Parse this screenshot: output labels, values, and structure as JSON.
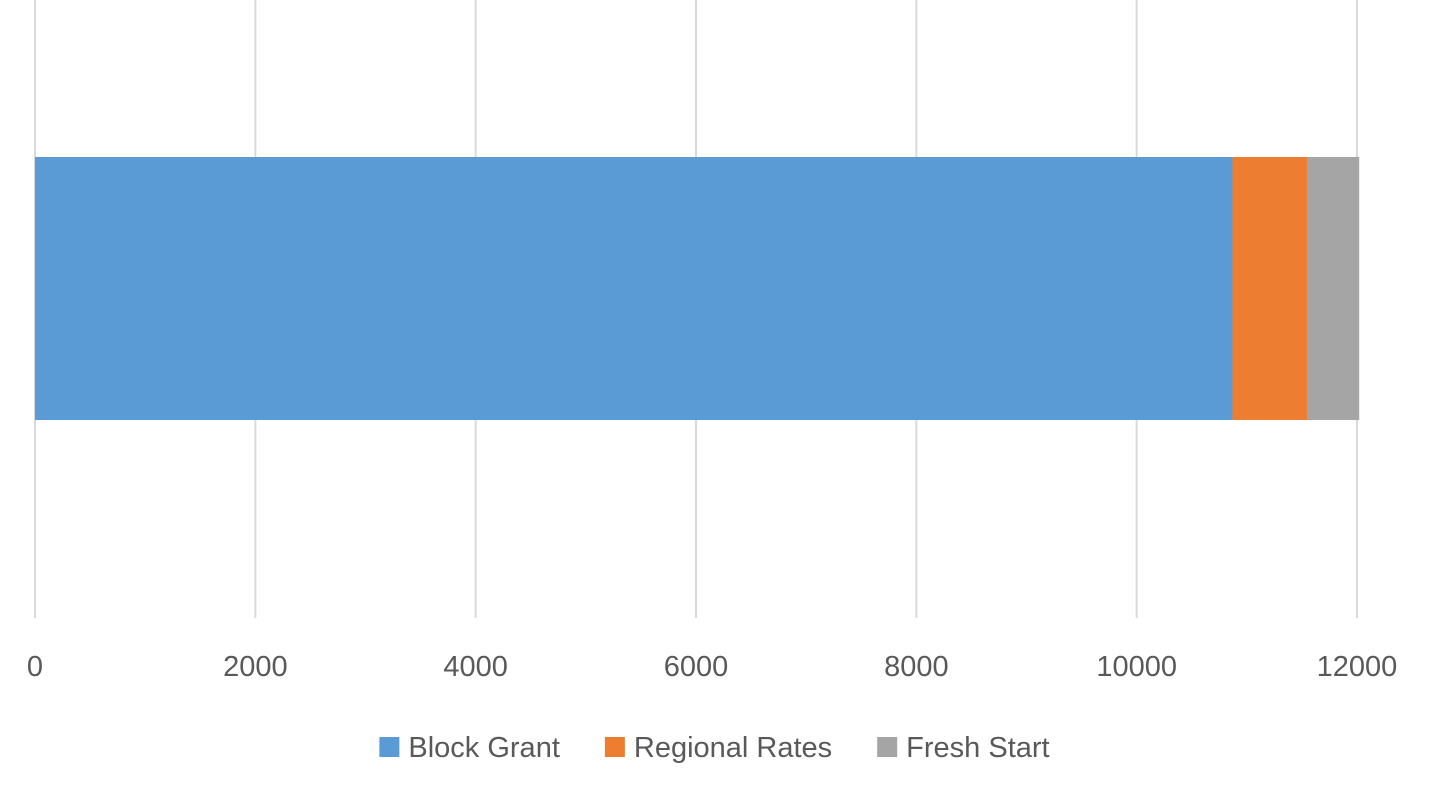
{
  "chart_data": {
    "type": "bar",
    "orientation": "horizontal",
    "stacked": true,
    "title": "",
    "xlabel": "",
    "ylabel": "",
    "categories": [
      ""
    ],
    "series": [
      {
        "name": "Block Grant",
        "values": [
          10870
        ],
        "color": "#5B9BD5"
      },
      {
        "name": "Regional Rates",
        "values": [
          680
        ],
        "color": "#ED7D31"
      },
      {
        "name": "Fresh Start",
        "values": [
          470
        ],
        "color": "#A5A5A5"
      }
    ],
    "xlim": [
      0,
      12000
    ],
    "x_ticks": [
      "0",
      "2000",
      "4000",
      "6000",
      "8000",
      "10000",
      "12000"
    ],
    "grid": "vertical",
    "legend_position": "bottom"
  }
}
